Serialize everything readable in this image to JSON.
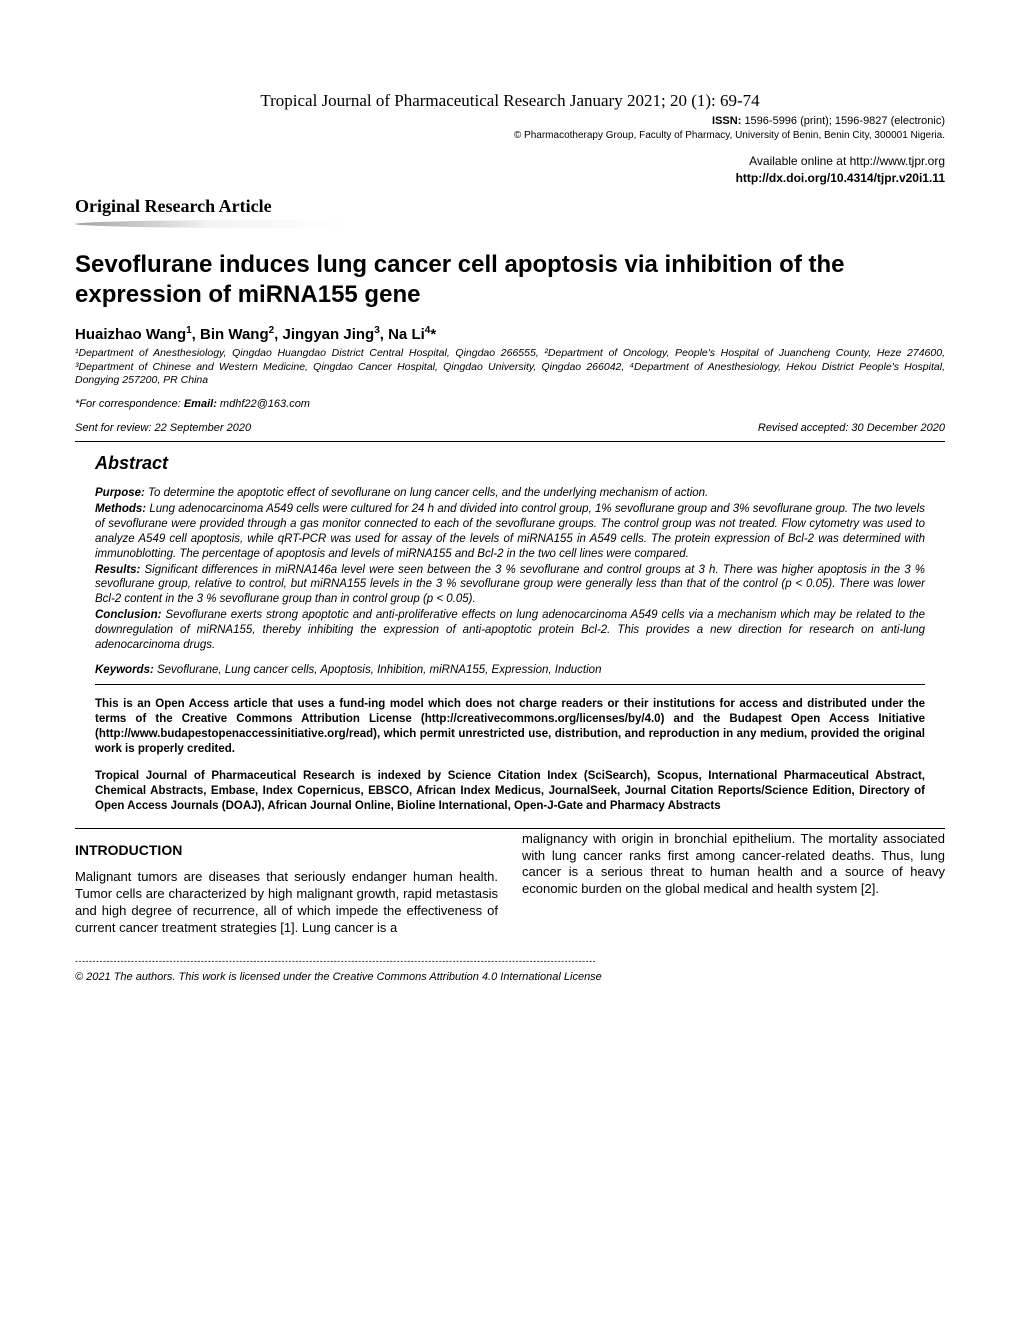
{
  "journal": {
    "citation": "Tropical Journal of Pharmaceutical Research January 2021; 20 (1): 69-74",
    "issn_line": "ISSN: 1596-5996 (print); 1596-9827 (electronic)",
    "copyright": "© Pharmacotherapy Group, Faculty of Pharmacy, University of Benin, Benin City, 300001 Nigeria.",
    "available": "Available online at http://www.tjpr.org",
    "doi": "http://dx.doi.org/10.4314/tjpr.v20i1.11"
  },
  "article_type": "Original Research Article",
  "title": "Sevoflurane induces lung cancer cell apoptosis via inhibition of the expression of miRNA155 gene",
  "authors_html": "Huaizhao Wang<sup>1</sup>, Bin Wang<sup>2</sup>, Jingyan Jing<sup>3</sup>, Na Li<sup>4</sup>*",
  "affiliations": "¹Department of Anesthesiology, Qingdao Huangdao District Central Hospital, Qingdao 266555, ²Department of Oncology, People's Hospital of Juancheng County, Heze 274600, ³Department of Chinese and Western Medicine, Qingdao Cancer Hospital, Qingdao University, Qingdao 266042, ⁴Department of Anesthesiology, Hekou District People's Hospital, Dongying 257200, PR China",
  "correspondence_label": "*For correspondence: ",
  "correspondence_email_label": "Email: ",
  "correspondence_email": "mdhf22@163.com",
  "dates": {
    "sent": "Sent for review: 22 September 2020",
    "revised": "Revised accepted: 30 December 2020"
  },
  "abstract": {
    "heading": "Abstract",
    "purpose_label": "Purpose:",
    "purpose": " To determine the apoptotic effect of sevoflurane on lung cancer cells, and the underlying mechanism of action.",
    "methods_label": "Methods:",
    "methods": " Lung adenocarcinoma A549 cells were cultured for 24 h and divided into control group, 1% sevoflurane group and 3% sevoflurane group. The two levels of sevoflurane were provided through a gas monitor connected to each of the sevoflurane groups. The control group was not treated. Flow cytometry was used to analyze A549 cell apoptosis, while qRT-PCR was used for assay of the levels of miRNA155 in A549 cells. The protein expression of Bcl-2 was determined with immunoblotting. The percentage of apoptosis and levels of miRNA155 and Bcl-2 in the two cell lines were compared.",
    "results_label": "Results:",
    "results": " Significant differences in miRNA146a level were seen between the 3 % sevoflurane and control groups at 3 h. There was higher apoptosis in the 3 % sevoflurane group, relative to control, but miRNA155 levels in the 3 % sevoflurane group were generally less than that of the control (p < 0.05). There was lower Bcl-2 content in the 3 % sevoflurane group than in control group (p < 0.05).",
    "conclusion_label": "Conclusion:",
    "conclusion": " Sevoflurane exerts strong apoptotic and anti-proliferative effects on lung adenocarcinoma A549 cells via a mechanism which may be related to the downregulation of miRNA155, thereby inhibiting the expression of anti-apoptotic protein Bcl-2. This provides a new direction for research on anti-lung adenocarcinoma drugs.",
    "keywords_label": "Keywords:",
    "keywords": " Sevoflurane, Lung cancer cells, Apoptosis, Inhibition, miRNA155, Expression, Induction"
  },
  "open_access": "This is an Open Access article that uses a fund-ing model which does not charge readers or their institutions for access and distributed under the terms of the Creative Commons Attribution License (http://creativecommons.org/licenses/by/4.0) and the Budapest Open Access Initiative (http://www.budapestopenaccessinitiative.org/read), which permit unrestricted use, distribution, and reproduction in any medium, provided the original work is properly credited.",
  "indexing": "Tropical Journal of Pharmaceutical Research is indexed by Science Citation Index (SciSearch), Scopus, International Pharmaceutical Abstract, Chemical Abstracts, Embase, Index Copernicus, EBSCO, African Index Medicus, JournalSeek, Journal Citation Reports/Science Edition, Directory of Open Access Journals (DOAJ), African Journal Online, Bioline International, Open-J-Gate and Pharmacy Abstracts",
  "intro": {
    "heading": "INTRODUCTION",
    "col1": "Malignant tumors are diseases that seriously endanger human health. Tumor cells are characterized by high malignant growth, rapid metastasis and high degree of recurrence, all of which impede the effectiveness of current cancer treatment strategies [1]. Lung cancer is a",
    "col2": "malignancy with origin in bronchial epithelium. The mortality associated with lung cancer ranks first among cancer-related deaths. Thus, lung cancer is a serious threat to human health and a source of heavy economic burden on the global medical and health system [2]."
  },
  "footer": "© 2021 The authors. This work is licensed under the Creative Commons Attribution 4.0 International License",
  "colors": {
    "text": "#000000",
    "background": "#ffffff",
    "rule": "#000000"
  }
}
